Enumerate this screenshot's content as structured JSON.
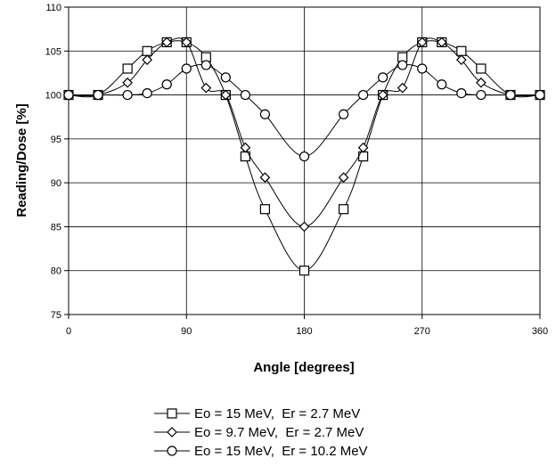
{
  "chart_data": {
    "type": "line",
    "title": "",
    "xlabel": "Angle [degrees]",
    "ylabel": "Reading/Dose [%]",
    "xlim": [
      0,
      360
    ],
    "ylim": [
      75,
      110
    ],
    "xticks": [
      0,
      90,
      180,
      270,
      360
    ],
    "yticks": [
      75,
      80,
      85,
      90,
      95,
      100,
      105,
      110
    ],
    "grid": true,
    "legend_position": "bottom",
    "series": [
      {
        "name": "Eo = 15 MeV,  Er = 2.7 MeV",
        "marker": "square",
        "x": [
          0,
          22.5,
          45,
          60,
          75,
          90,
          105,
          120,
          135,
          150,
          180,
          210,
          225,
          240,
          255,
          270,
          285,
          300,
          315,
          337.5,
          360
        ],
        "y": [
          100,
          100,
          103,
          105,
          106,
          106,
          104.3,
          100,
          93,
          87,
          80,
          87,
          93,
          100,
          104.3,
          106,
          106,
          105,
          103,
          100,
          100
        ]
      },
      {
        "name": "Eo = 9.7 MeV,  Er = 2.7 MeV",
        "marker": "diamond",
        "x": [
          0,
          22.5,
          45,
          60,
          75,
          90,
          105,
          120,
          135,
          150,
          180,
          210,
          225,
          240,
          255,
          270,
          285,
          300,
          315,
          337.5,
          360
        ],
        "y": [
          100,
          100,
          101.4,
          104,
          106,
          106,
          100.8,
          100,
          94,
          90.6,
          85,
          90.6,
          94,
          100,
          100.8,
          106,
          106,
          104,
          101.4,
          100,
          100
        ]
      },
      {
        "name": "Eo = 15 MeV,  Er = 10.2 MeV",
        "marker": "circle",
        "x": [
          0,
          22.5,
          45,
          60,
          75,
          90,
          105,
          120,
          135,
          150,
          180,
          210,
          225,
          240,
          255,
          270,
          285,
          300,
          315,
          337.5,
          360
        ],
        "y": [
          100,
          100,
          100,
          100.2,
          101.2,
          103,
          103.4,
          102,
          100,
          97.8,
          93,
          97.8,
          100,
          102,
          103.4,
          103,
          101.2,
          100.2,
          100,
          100,
          100
        ]
      }
    ]
  }
}
